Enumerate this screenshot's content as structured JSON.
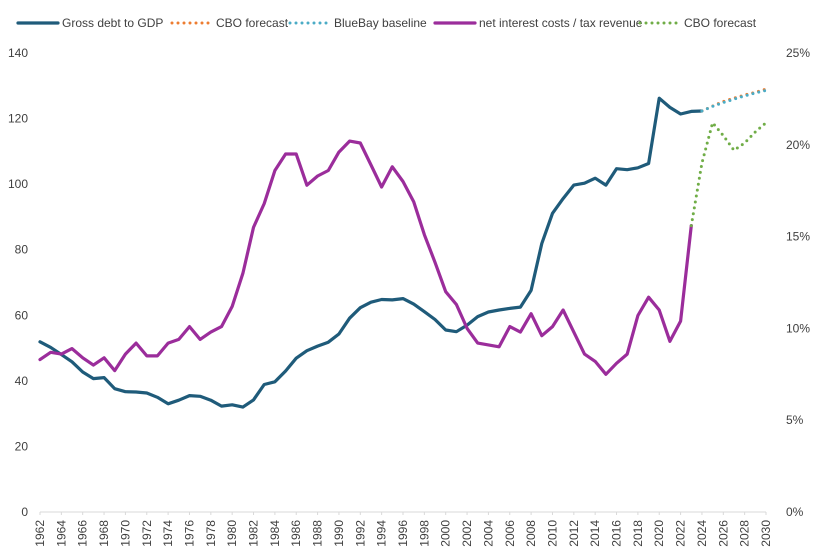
{
  "chart_data": {
    "type": "line",
    "title": "",
    "xlabel": "",
    "ylabel": "",
    "y2label": "",
    "xlim": [
      1962,
      2030
    ],
    "ylim": [
      0,
      140
    ],
    "y2lim": [
      0,
      25
    ],
    "grid": false,
    "legend_position": "top",
    "x_ticks": [
      "1962",
      "1964",
      "1966",
      "1968",
      "1970",
      "1972",
      "1974",
      "1976",
      "1978",
      "1980",
      "1982",
      "1984",
      "1986",
      "1988",
      "1990",
      "1992",
      "1994",
      "1996",
      "1998",
      "2000",
      "2002",
      "2004",
      "2006",
      "2008",
      "2010",
      "2012",
      "2014",
      "2016",
      "2018",
      "2020",
      "2022",
      "2024",
      "2026",
      "2028",
      "2030"
    ],
    "y_ticks": [
      "0",
      "20",
      "40",
      "60",
      "80",
      "100",
      "120",
      "140"
    ],
    "y2_ticks": [
      "0%",
      "5%",
      "10%",
      "15%",
      "20%",
      "25%"
    ],
    "series": [
      {
        "name": "Gross debt to GDP",
        "axis": "left",
        "color": "#1f5b7a",
        "style": "solid",
        "x": [
          1962,
          1963,
          1964,
          1965,
          1966,
          1967,
          1968,
          1969,
          1970,
          1971,
          1972,
          1973,
          1974,
          1975,
          1976,
          1977,
          1978,
          1979,
          1980,
          1981,
          1982,
          1983,
          1984,
          1985,
          1986,
          1987,
          1988,
          1989,
          1990,
          1991,
          1992,
          1993,
          1994,
          1995,
          1996,
          1997,
          1998,
          1999,
          2000,
          2001,
          2002,
          2003,
          2004,
          2005,
          2006,
          2007,
          2008,
          2009,
          2010,
          2011,
          2012,
          2013,
          2014,
          2015,
          2016,
          2017,
          2018,
          2019,
          2020,
          2021,
          2022,
          2023,
          2024
        ],
        "values": [
          51.9,
          50.2,
          48.0,
          45.8,
          42.7,
          40.7,
          41.0,
          37.6,
          36.7,
          36.6,
          36.3,
          35.0,
          33.0,
          34.1,
          35.5,
          35.3,
          34.1,
          32.3,
          32.7,
          32.0,
          34.2,
          38.9,
          39.7,
          43.0,
          46.9,
          49.2,
          50.6,
          51.8,
          54.3,
          59.1,
          62.3,
          64.0,
          64.8,
          64.7,
          65.1,
          63.4,
          61.1,
          58.7,
          55.5,
          55.0,
          57.0,
          59.6,
          61.0,
          61.6,
          62.1,
          62.5,
          67.6,
          81.9,
          91.1,
          95.6,
          99.7,
          100.3,
          101.8,
          99.7,
          104.7,
          104.4,
          105.0,
          106.3,
          126.2,
          123.4,
          121.4,
          122.2,
          122.3
        ]
      },
      {
        "name": "CBO forecast",
        "axis": "left",
        "color": "#ed7d31",
        "style": "dotted",
        "x": [
          2024,
          2025,
          2026,
          2027,
          2028,
          2029,
          2030
        ],
        "values": [
          122.3,
          123.8,
          125.2,
          126.2,
          127.2,
          128.0,
          129.0
        ]
      },
      {
        "name": "BlueBay baseline",
        "axis": "left",
        "color": "#4bacc6",
        "style": "dotted",
        "x": [
          2024,
          2025,
          2026,
          2027,
          2028,
          2029,
          2030
        ],
        "values": [
          122.3,
          123.7,
          124.9,
          125.9,
          126.9,
          127.8,
          128.6
        ]
      },
      {
        "name": "net interest costs / tax revenue",
        "axis": "right",
        "color": "#9b2d9b",
        "style": "solid",
        "x": [
          1962,
          1963,
          1964,
          1965,
          1966,
          1967,
          1968,
          1969,
          1970,
          1971,
          1972,
          1973,
          1974,
          1975,
          1976,
          1977,
          1978,
          1979,
          1980,
          1981,
          1982,
          1983,
          1984,
          1985,
          1986,
          1987,
          1988,
          1989,
          1990,
          1991,
          1992,
          1993,
          1994,
          1995,
          1996,
          1997,
          1998,
          1999,
          2000,
          2001,
          2002,
          2003,
          2004,
          2005,
          2006,
          2007,
          2008,
          2009,
          2010,
          2011,
          2012,
          2013,
          2014,
          2015,
          2016,
          2017,
          2018,
          2019,
          2020,
          2021,
          2022,
          2023
        ],
        "values": [
          8.3,
          8.7,
          8.6,
          8.9,
          8.4,
          8.0,
          8.4,
          7.7,
          8.6,
          9.2,
          8.5,
          8.5,
          9.2,
          9.4,
          10.1,
          9.4,
          9.8,
          10.1,
          11.2,
          13.0,
          15.5,
          16.8,
          18.6,
          19.5,
          19.5,
          17.8,
          18.3,
          18.6,
          19.6,
          20.2,
          20.1,
          18.9,
          17.7,
          18.8,
          18.0,
          16.9,
          15.1,
          13.6,
          12.0,
          11.3,
          10.0,
          9.2,
          9.1,
          9.0,
          10.1,
          9.8,
          10.8,
          9.6,
          10.1,
          11.0,
          9.8,
          8.6,
          8.2,
          7.5,
          8.1,
          8.6,
          10.7,
          11.7,
          11.0,
          9.3,
          10.4,
          15.6
        ]
      },
      {
        "name": "CBO forecast",
        "axis": "right",
        "color": "#70ad47",
        "style": "dotted",
        "x": [
          2023,
          2024,
          2025,
          2026,
          2027,
          2028,
          2029,
          2030
        ],
        "values": [
          15.6,
          19.0,
          21.2,
          20.5,
          19.7,
          20.1,
          20.7,
          21.2
        ]
      }
    ]
  }
}
